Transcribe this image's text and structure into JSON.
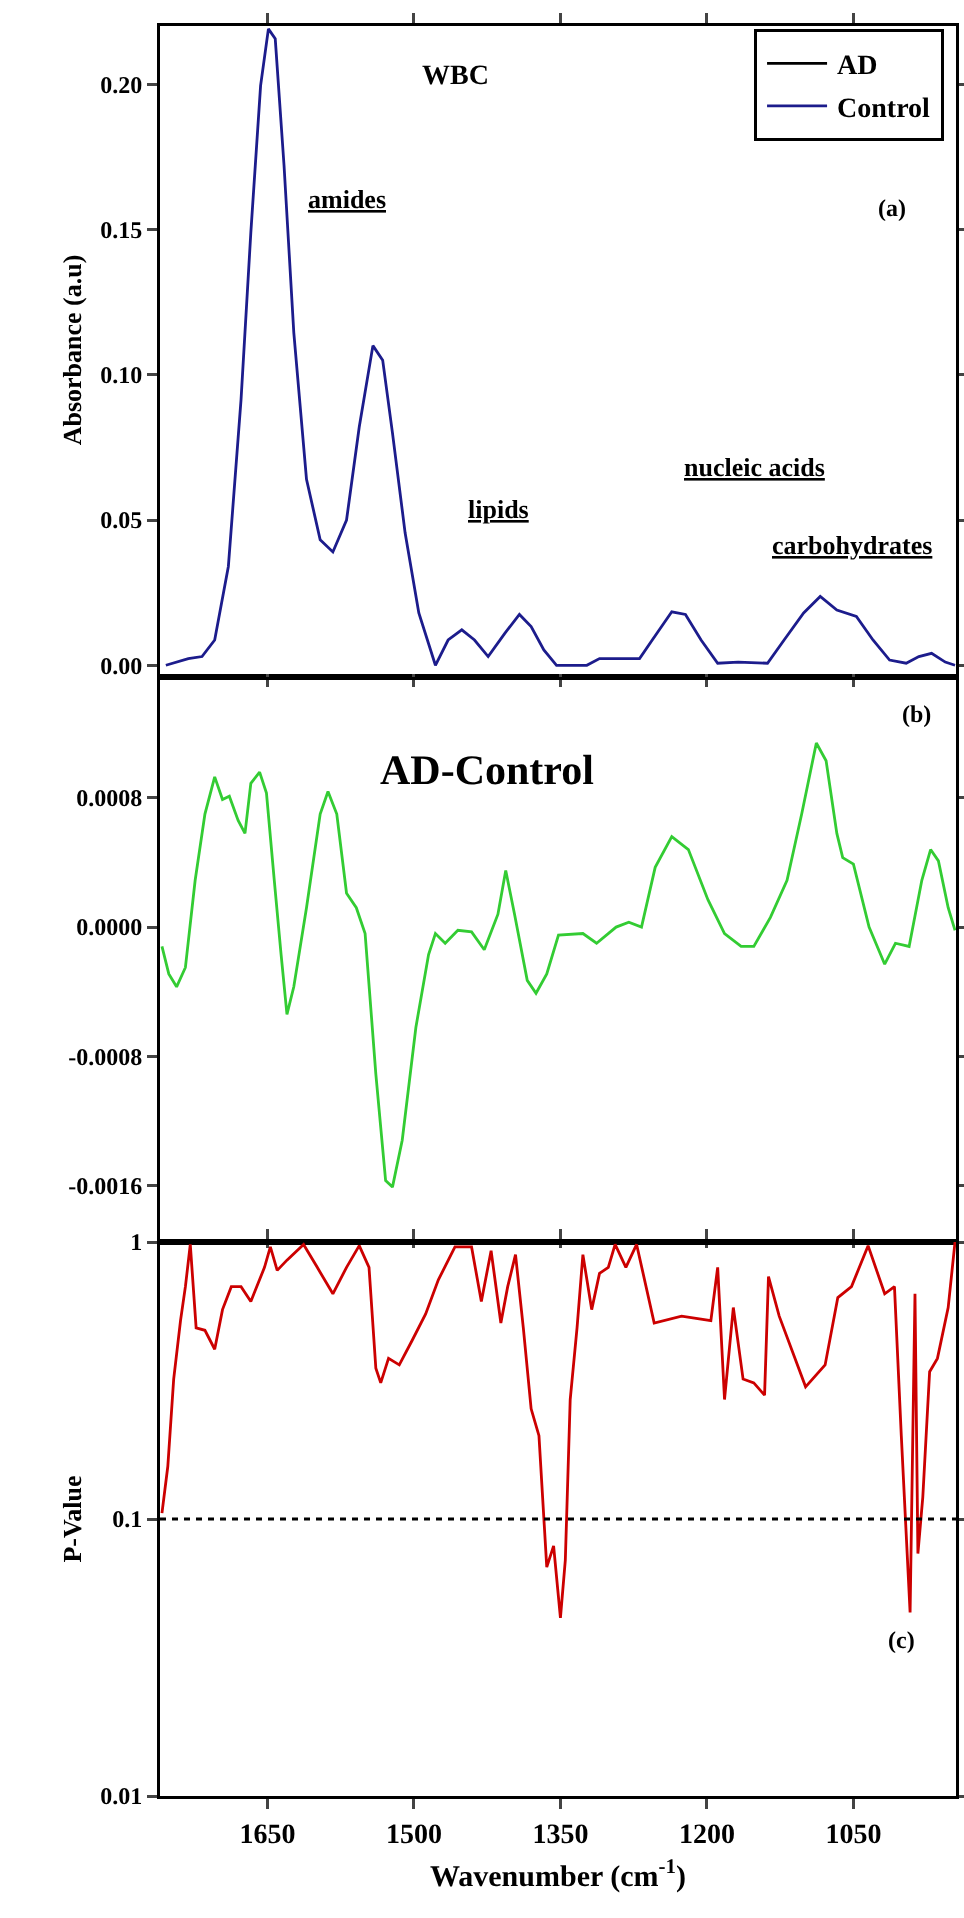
{
  "chart_data": [
    {
      "type": "line",
      "ylabel": "Absorbance (a.u)",
      "legend": "top right",
      "tick_labels": "y",
      "grid": false,
      "x": [
        1754,
        1731,
        1717,
        1704,
        1690,
        1677,
        1667,
        1657,
        1649,
        1642,
        1633,
        1623,
        1610,
        1596,
        1583,
        1569,
        1556,
        1542,
        1532,
        1522,
        1509,
        1495,
        1478,
        1465,
        1451,
        1438,
        1424,
        1407,
        1392,
        1380,
        1367,
        1354,
        1323,
        1310,
        1269,
        1256,
        1236,
        1222,
        1206,
        1189,
        1168,
        1138,
        1121,
        1101,
        1084,
        1067,
        1047,
        1030,
        1013,
        996,
        983,
        970,
        956,
        946
      ],
      "series": [
        {
          "name": "AD",
          "color": "#000000",
          "values": [
            null,
            null,
            null,
            null,
            null,
            null,
            null,
            null,
            null,
            null,
            null,
            null,
            null,
            null,
            null,
            null,
            null,
            null,
            null,
            null,
            null,
            null,
            null,
            null,
            null,
            null,
            null,
            null,
            null,
            null,
            null,
            null,
            null,
            null,
            null,
            null,
            null,
            null,
            null,
            null,
            null,
            null,
            null,
            null,
            null,
            null,
            null,
            null,
            null,
            null,
            null,
            null,
            null,
            null
          ]
        },
        {
          "name": "Control",
          "color": "#1c1c8c",
          "values": [
            0,
            0.0023,
            0.003,
            0.0087,
            0.034,
            0.0915,
            0.149,
            0.1995,
            0.219,
            0.2156,
            0.172,
            0.1145,
            0.064,
            0.0432,
            0.039,
            0.05,
            0.082,
            0.11,
            0.105,
            0.08,
            0.0455,
            0.018,
            0,
            0.0087,
            0.0122,
            0.0087,
            0.003,
            0.011,
            0.0175,
            0.0133,
            0.0053,
            0,
            0,
            0.0023,
            0.0023,
            0.0087,
            0.0184,
            0.0175,
            0.0087,
            0.0007,
            0.0011,
            0.0007,
            0.0087,
            0.018,
            0.0237,
            0.019,
            0.0168,
            0.0087,
            0.0018,
            0.0007,
            0.003,
            0.0041,
            0.0011,
            0
          ]
        }
      ],
      "xlim": [
        1760,
        945
      ],
      "xticks": [
        1650,
        1500,
        1350,
        1200,
        1050
      ],
      "ylim": [
        -0.003,
        0.22
      ],
      "yticks": [
        {
          "value": 0,
          "label": "0.00"
        },
        {
          "value": 0.05,
          "label": "0.05"
        },
        {
          "value": 0.1,
          "label": "0.10"
        },
        {
          "value": 0.15,
          "label": "0.15"
        },
        {
          "value": 0.2,
          "label": "0.20"
        }
      ],
      "annotations": [
        "WBC",
        "(a)",
        "amides",
        "lipids",
        "nucleic acids",
        "carbohydrates"
      ]
    },
    {
      "type": "line",
      "tick_labels": "y",
      "grid": false,
      "x": [
        1758,
        1751,
        1743,
        1734,
        1724,
        1714,
        1704,
        1696,
        1689,
        1680,
        1673,
        1667,
        1658,
        1651,
        1643,
        1636,
        1630,
        1623,
        1610,
        1596,
        1588,
        1579,
        1569,
        1559,
        1550,
        1539,
        1529,
        1522,
        1512,
        1498,
        1485,
        1478,
        1468,
        1455,
        1441,
        1428,
        1414,
        1406,
        1397,
        1384,
        1375,
        1364,
        1352,
        1327,
        1313,
        1293,
        1280,
        1267,
        1253,
        1236,
        1219,
        1199,
        1182,
        1165,
        1152,
        1135,
        1118,
        1103,
        1088,
        1078,
        1067,
        1061,
        1050,
        1034,
        1018,
        1007,
        993,
        980,
        971,
        963,
        953,
        946
      ],
      "series": [
        {
          "color": "#33cc33",
          "values": [
            -0.00012,
            -0.00029,
            -0.00037,
            -0.00025,
            0.00029,
            0.0007,
            0.00093,
            0.00079,
            0.00081,
            0.00066,
            0.00058,
            0.00089,
            0.00096,
            0.00083,
            0.00029,
            -0.00017,
            -0.00054,
            -0.00037,
            0.00012,
            0.0007,
            0.00084,
            0.0007,
            0.00021,
            0.00012,
            -4e-05,
            -0.00091,
            -0.00157,
            -0.00161,
            -0.00132,
            -0.00062,
            -0.00017,
            -4e-05,
            -0.0001,
            -2e-05,
            -3e-05,
            -0.00014,
            8e-05,
            0.00035,
            8e-05,
            -0.00033,
            -0.00041,
            -0.00029,
            -5e-05,
            -4e-05,
            -0.0001,
            0,
            3e-05,
            0,
            0.00037,
            0.00056,
            0.00048,
            0.00017,
            -4e-05,
            -0.00012,
            -0.00012,
            6e-05,
            0.00029,
            0.0007,
            0.00114,
            0.00103,
            0.00058,
            0.00043,
            0.00039,
            0,
            -0.00023,
            -0.0001,
            -0.00012,
            0.00029,
            0.00048,
            0.00041,
            0.00012,
            -2e-05
          ]
        }
      ],
      "xlim": [
        1760,
        945
      ],
      "xticks": [
        1650,
        1500,
        1350,
        1200,
        1050
      ],
      "ylim": [
        -0.00195,
        0.00153
      ],
      "yticks": [
        {
          "value": -0.0016,
          "label": "-0.0016"
        },
        {
          "value": -0.0008,
          "label": "-0.0008"
        },
        {
          "value": 0,
          "label": "0.0000"
        },
        {
          "value": 0.0008,
          "label": "0.0008"
        }
      ],
      "annotations": [
        "AD-Control",
        "(b)"
      ]
    },
    {
      "type": "line",
      "ylabel": "P-Value",
      "xlabel": "Wavenumber (cm$^{-1}$)",
      "log": true,
      "grid": false,
      "x": [
        1758,
        1752,
        1746,
        1739,
        1734,
        1729,
        1723,
        1714,
        1704,
        1696,
        1687,
        1677,
        1667,
        1653,
        1647,
        1640,
        1630,
        1613,
        1599,
        1583,
        1569,
        1556,
        1546,
        1539,
        1534,
        1526,
        1515,
        1502,
        1488,
        1475,
        1458,
        1441,
        1431,
        1421,
        1411,
        1404,
        1396,
        1388,
        1380,
        1372,
        1364,
        1357,
        1350,
        1345,
        1340,
        1333,
        1327,
        1318,
        1310,
        1301,
        1294,
        1283,
        1272,
        1254,
        1226,
        1196,
        1189,
        1182,
        1173,
        1163,
        1152,
        1141,
        1137,
        1126,
        1099,
        1079,
        1066,
        1052,
        1035,
        1018,
        1008,
        1001,
        992,
        987,
        984,
        979,
        972,
        964,
        953,
        946
      ],
      "series": [
        {
          "color": "#cc0000",
          "values": [
            0.105,
            0.155,
            0.32,
            0.52,
            0.69,
            0.98,
            0.49,
            0.48,
            0.41,
            0.57,
            0.69,
            0.69,
            0.61,
            0.81,
            0.96,
            0.79,
            0.86,
            0.98,
            0.81,
            0.65,
            0.81,
            0.97,
            0.81,
            0.35,
            0.31,
            0.38,
            0.36,
            0.44,
            0.55,
            0.73,
            0.96,
            0.96,
            0.61,
            0.93,
            0.51,
            0.69,
            0.9,
            0.49,
            0.25,
            0.2,
            0.067,
            0.08,
            0.044,
            0.071,
            0.27,
            0.49,
            0.9,
            0.57,
            0.77,
            0.81,
            0.98,
            0.81,
            0.98,
            0.51,
            0.54,
            0.52,
            0.81,
            0.27,
            0.58,
            0.32,
            0.31,
            0.28,
            0.75,
            0.54,
            0.3,
            0.36,
            0.63,
            0.69,
            0.97,
            0.65,
            0.69,
            0.2,
            0.046,
            0.65,
            0.075,
            0.12,
            0.34,
            0.38,
            0.58,
            1
          ]
        }
      ],
      "xlim": [
        1760,
        945
      ],
      "xticks": [
        1650,
        1500,
        1350,
        1200,
        1050
      ],
      "ylim": [
        0.01,
        1
      ],
      "yticks": [
        0.01,
        0.1,
        1
      ],
      "ref_lines": [
        {
          "axis": "y",
          "value": 0.1,
          "line_style": "dotted",
          "color": "#000000"
        }
      ],
      "annotations": [
        "(c)"
      ]
    }
  ]
}
